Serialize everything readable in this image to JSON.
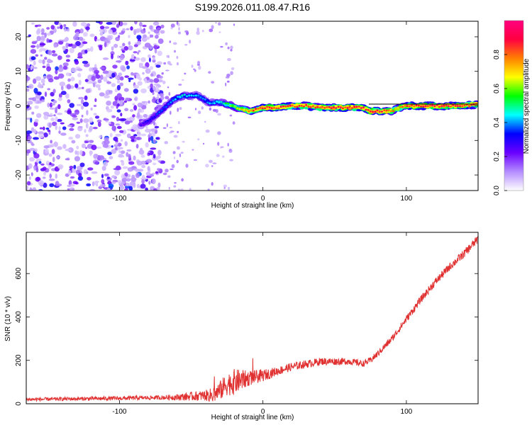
{
  "title": "S199.2026.011.08.47.R16",
  "chart_data": [
    {
      "type": "heatmap",
      "xlabel": "Height of straight line (km)",
      "ylabel": "Frequency (Hz)",
      "xlim": [
        -165,
        150
      ],
      "ylim": [
        -24.5,
        24.5
      ],
      "xticks": [
        -100,
        0,
        100
      ],
      "yticks": [
        -20,
        -10,
        0,
        10,
        20
      ],
      "colorbar": {
        "label": "Normalized spectral amplitude",
        "ticks": [
          "0.0",
          "0.2",
          "0.4",
          "0.6",
          "0.8"
        ],
        "range": [
          0,
          1
        ],
        "stops": [
          "#ffffff",
          "#b48cff",
          "#6a00ff",
          "#0000ff",
          "#00ffff",
          "#00ff00",
          "#ffff00",
          "#ff8000",
          "#ff0040",
          "#ff0080"
        ]
      },
      "ridge": {
        "x": [
          -85,
          -78,
          -70,
          -62,
          -55,
          -45,
          -38,
          -30,
          -25,
          -18,
          -10,
          0,
          10,
          20,
          30,
          40,
          50,
          60,
          70,
          75,
          80,
          85,
          90,
          95,
          100,
          110,
          120,
          130,
          140,
          150
        ],
        "f": [
          -5.5,
          -4,
          -1,
          2,
          3,
          3,
          1,
          1,
          0.5,
          -0.5,
          -1.5,
          -0.5,
          -0.5,
          0,
          0,
          -0.5,
          -0.5,
          -0.5,
          -0.5,
          -1.5,
          -1.5,
          -1.5,
          -1.5,
          -0.5,
          0,
          0,
          0,
          0,
          0,
          0.5
        ],
        "amplitude": [
          0.3,
          0.35,
          0.4,
          0.45,
          0.5,
          0.45,
          0.45,
          0.5,
          0.6,
          0.7,
          0.85,
          0.95,
          0.95,
          0.9,
          0.9,
          0.95,
          0.95,
          0.95,
          0.95,
          0.95,
          0.95,
          0.95,
          0.85,
          0.8,
          0.9,
          0.95,
          0.95,
          0.95,
          0.95,
          0.9
        ]
      },
      "noise_region_x": [
        -165,
        -80
      ]
    },
    {
      "type": "line",
      "xlabel": "Height of straight line (km)",
      "ylabel": "SNR (10 * v/v)",
      "xlim": [
        -165,
        150
      ],
      "ylim": [
        0,
        790
      ],
      "xticks": [
        -100,
        0,
        100
      ],
      "yticks": [
        0,
        200,
        400,
        600
      ],
      "line_color": "#e03030",
      "trend": {
        "x": [
          -165,
          -100,
          -60,
          -35,
          -30,
          -25,
          -15,
          0,
          10,
          20,
          40,
          60,
          70,
          75,
          80,
          90,
          100,
          110,
          120,
          130,
          140,
          150
        ],
        "y": [
          20,
          25,
          30,
          40,
          60,
          90,
          110,
          130,
          150,
          170,
          195,
          195,
          185,
          200,
          230,
          300,
          390,
          480,
          560,
          630,
          690,
          760
        ]
      },
      "noise_amplitude": {
        "x": [
          -165,
          -70,
          -40,
          -30,
          -20,
          -10,
          10,
          70,
          150
        ],
        "y": [
          8,
          10,
          25,
          45,
          60,
          35,
          20,
          15,
          20
        ]
      }
    }
  ]
}
